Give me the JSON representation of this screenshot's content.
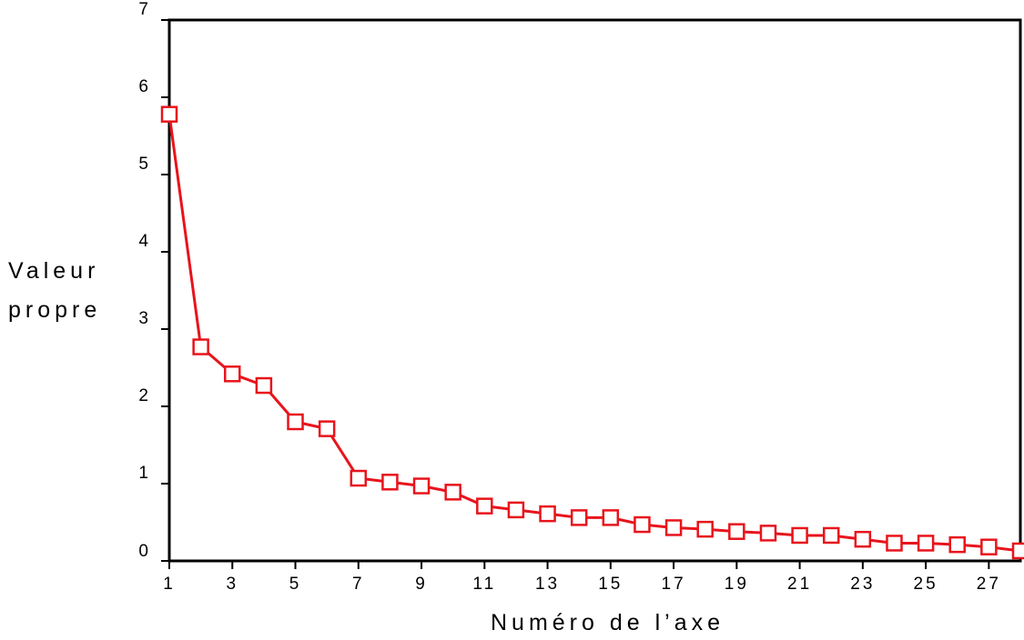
{
  "chart_data": {
    "type": "line",
    "title": "",
    "ylabel_lines": [
      "Valeur",
      "propre"
    ],
    "xlabel": "Numéro de l’axe",
    "x": [
      1,
      2,
      3,
      4,
      5,
      6,
      7,
      8,
      9,
      10,
      11,
      12,
      13,
      14,
      15,
      16,
      17,
      18,
      19,
      20,
      21,
      22,
      23,
      24,
      25,
      26,
      27,
      28
    ],
    "series": [
      {
        "values": [
          5.78,
          2.77,
          2.42,
          2.27,
          1.8,
          1.71,
          1.07,
          1.02,
          0.97,
          0.89,
          0.71,
          0.66,
          0.61,
          0.56,
          0.56,
          0.47,
          0.43,
          0.41,
          0.38,
          0.36,
          0.33,
          0.33,
          0.28,
          0.23,
          0.23,
          0.21,
          0.18,
          0.13
        ],
        "color": "#e8141c",
        "marker": "square-open"
      }
    ],
    "xlim": [
      1,
      28
    ],
    "ylim": [
      0,
      7
    ],
    "xticks": [
      1,
      3,
      5,
      7,
      9,
      11,
      13,
      15,
      17,
      19,
      21,
      23,
      25,
      27
    ],
    "yticks": [
      0,
      1,
      2,
      3,
      4,
      5,
      6,
      7
    ],
    "grid": false,
    "frame_color": "#000000"
  }
}
